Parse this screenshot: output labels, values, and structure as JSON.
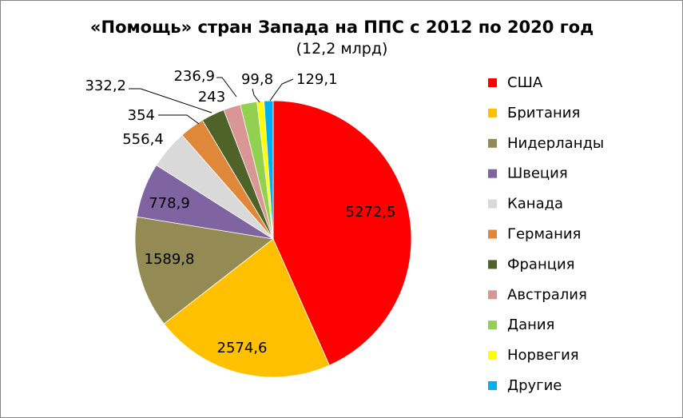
{
  "chart_data": {
    "type": "pie",
    "title": "«Помощь» стран Запада на ППС с 2012 по 2020 год",
    "subtitle": "(12,2 млрд)",
    "legend_position": "right",
    "slices": [
      {
        "name": "США",
        "value": 5272.5,
        "label": "5272,5",
        "color": "#FF0000"
      },
      {
        "name": "Британия",
        "value": 2574.6,
        "label": "2574,6",
        "color": "#FFC000"
      },
      {
        "name": "Нидерланды",
        "value": 1589.8,
        "label": "1589,8",
        "color": "#948A54"
      },
      {
        "name": "Швеция",
        "value": 778.9,
        "label": "778,9",
        "color": "#8064A2"
      },
      {
        "name": "Канада",
        "value": 556.4,
        "label": "556,4",
        "color": "#D9D9D9"
      },
      {
        "name": "Германия",
        "value": 354,
        "label": "354",
        "color": "#E0883A"
      },
      {
        "name": "Франция",
        "value": 332.2,
        "label": "332,2",
        "color": "#4F6228"
      },
      {
        "name": "Австралия",
        "value": 243,
        "label": "243",
        "color": "#D99694"
      },
      {
        "name": "Дания",
        "value": 236.9,
        "label": "236,9",
        "color": "#92D050"
      },
      {
        "name": "Норвегия",
        "value": 99.8,
        "label": "99,8",
        "color": "#FFFF00"
      },
      {
        "name": "Другие",
        "value": 129.1,
        "label": "129,1",
        "color": "#00B0F0"
      }
    ]
  }
}
